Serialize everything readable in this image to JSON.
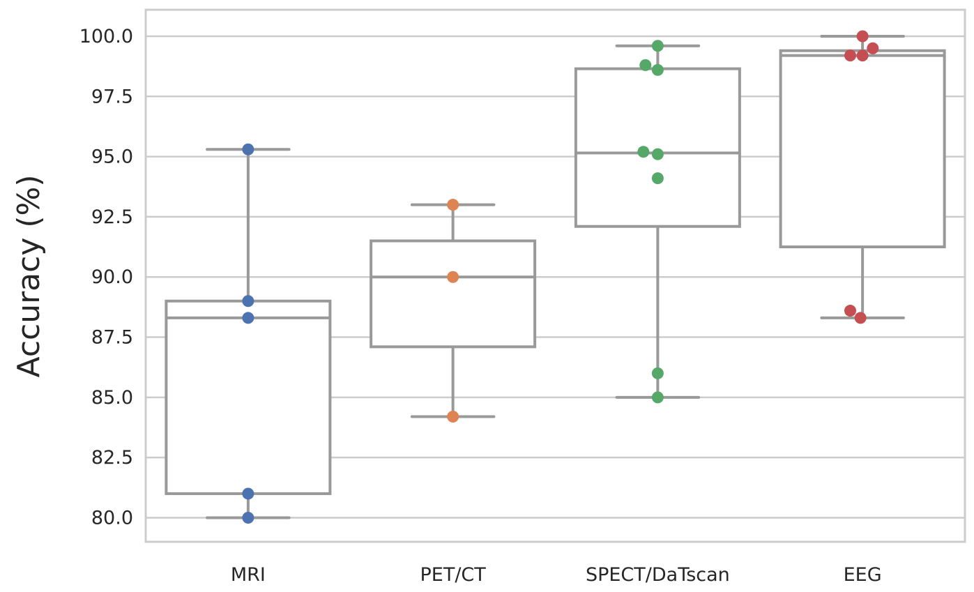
{
  "chart_data": {
    "type": "box",
    "title": "",
    "xlabel": "",
    "ylabel": "Accuracy (%)",
    "ylim": [
      79,
      101.1
    ],
    "yticks": [
      80.0,
      82.5,
      85.0,
      87.5,
      90.0,
      92.5,
      95.0,
      97.5,
      100.0
    ],
    "ytick_labels": [
      "80.0",
      "82.5",
      "85.0",
      "87.5",
      "90.0",
      "92.5",
      "95.0",
      "97.5",
      "100.0"
    ],
    "grid": true,
    "categories": [
      "MRI",
      "PET/CT",
      "SPECT/DaTscan",
      "EEG"
    ],
    "boxes": [
      {
        "category": "MRI",
        "whisker_low": 80.0,
        "q1": 81.0,
        "median": 88.3,
        "q3": 89.0,
        "whisker_high": 95.3
      },
      {
        "category": "PET/CT",
        "whisker_low": 84.2,
        "q1": 87.1,
        "median": 90.0,
        "q3": 91.5,
        "whisker_high": 93.0
      },
      {
        "category": "SPECT/DaTscan",
        "whisker_low": 85.0,
        "q1": 92.1,
        "median": 95.15,
        "q3": 98.65,
        "whisker_high": 99.6
      },
      {
        "category": "EEG",
        "whisker_low": 88.3,
        "q1": 91.25,
        "median": 99.2,
        "q3": 99.4,
        "whisker_high": 100.0
      }
    ],
    "points": [
      {
        "category": "MRI",
        "color": "#4c72b0",
        "values": [
          95.3,
          89.0,
          88.3,
          81.0,
          80.0
        ],
        "jitter": [
          0,
          0,
          0,
          0,
          0
        ]
      },
      {
        "category": "PET/CT",
        "color": "#dd8452",
        "values": [
          93.0,
          90.0,
          84.2
        ],
        "jitter": [
          0,
          0,
          0
        ]
      },
      {
        "category": "SPECT/DaTscan",
        "color": "#55a868",
        "values": [
          99.6,
          98.8,
          98.6,
          95.2,
          95.1,
          94.1,
          86.0,
          85.0
        ],
        "jitter": [
          0,
          -0.06,
          0,
          -0.07,
          0,
          0,
          0,
          0
        ]
      },
      {
        "category": "EEG",
        "color": "#c44e52",
        "values": [
          100.0,
          99.5,
          99.2,
          99.2,
          88.6,
          88.3
        ],
        "jitter": [
          0,
          0.05,
          0,
          -0.06,
          -0.06,
          -0.01
        ]
      }
    ],
    "box_color": "#999999",
    "grid_color": "#cccccc"
  }
}
